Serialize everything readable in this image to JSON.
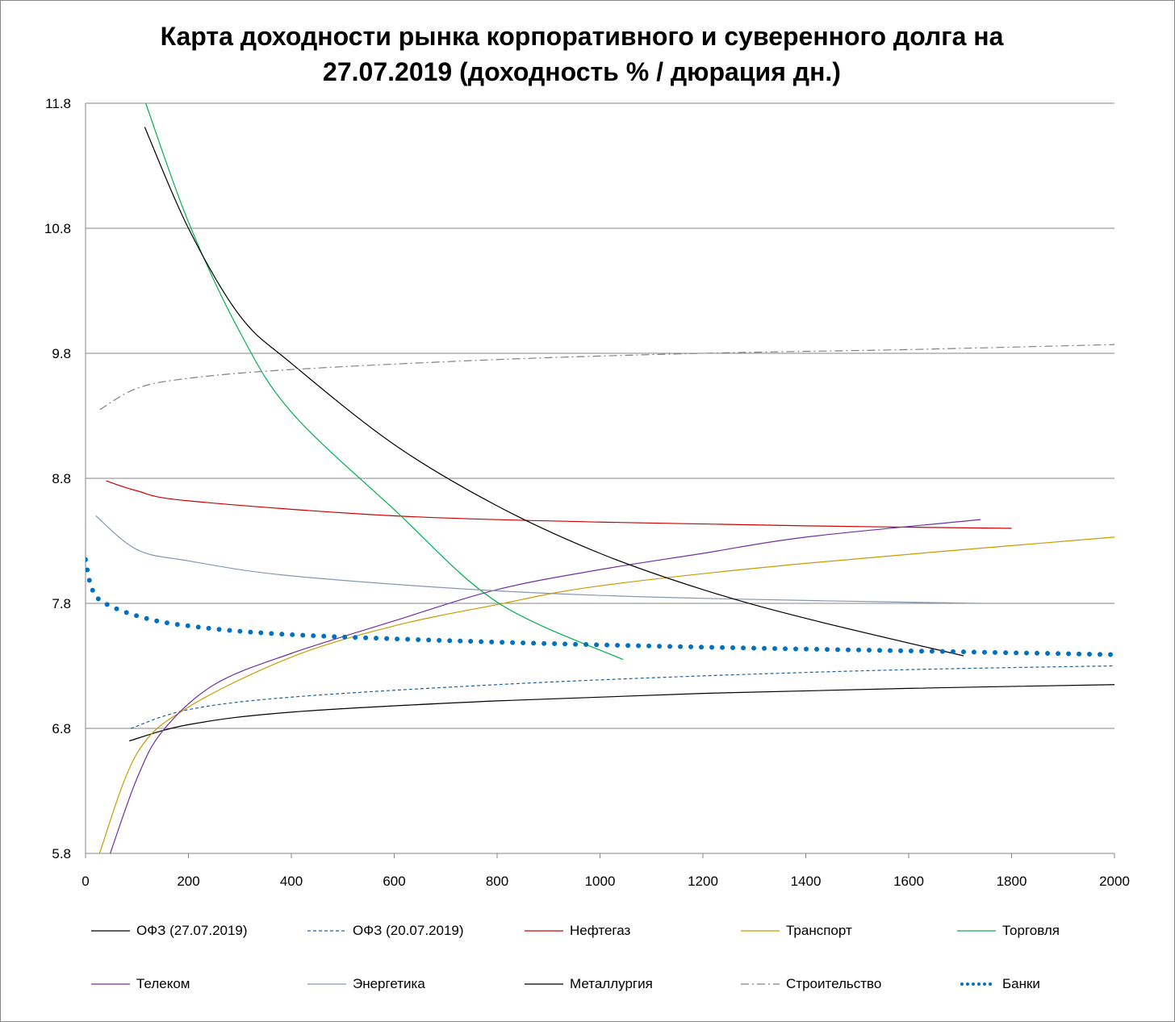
{
  "chart_data": {
    "type": "line",
    "title_line1": "Карта доходности рынка корпоративного и суверенного долга на",
    "title_line2": "27.07.2019 (доходность % / дюрация дн.)",
    "xlabel": "",
    "ylabel": "",
    "xlim": [
      0,
      2000
    ],
    "ylim": [
      5.8,
      11.8
    ],
    "xticks": [
      "0",
      "200",
      "400",
      "600",
      "800",
      "1000",
      "1200",
      "1400",
      "1600",
      "1800",
      "2000"
    ],
    "yticks": [
      "5.8",
      "6.8",
      "7.8",
      "8.8",
      "9.8",
      "10.8",
      "11.8"
    ],
    "grid": "horizontal",
    "legend_position": "bottom",
    "series": [
      {
        "name": "ОФЗ (27.07.2019)",
        "color": "#000000",
        "style": "solid",
        "points": [
          [
            85,
            6.7
          ],
          [
            200,
            6.83
          ],
          [
            400,
            6.93
          ],
          [
            800,
            7.02
          ],
          [
            1200,
            7.08
          ],
          [
            1600,
            7.12
          ],
          [
            2000,
            7.15
          ]
        ]
      },
      {
        "name": "ОФЗ (20.07.2019)",
        "color": "#1f5f9f",
        "style": "dashed",
        "points": [
          [
            88,
            6.8
          ],
          [
            200,
            6.95
          ],
          [
            400,
            7.05
          ],
          [
            800,
            7.15
          ],
          [
            1200,
            7.22
          ],
          [
            1600,
            7.27
          ],
          [
            2000,
            7.3
          ]
        ]
      },
      {
        "name": "Нефтегаз",
        "color": "#cc0000",
        "style": "solid",
        "points": [
          [
            40,
            8.78
          ],
          [
            100,
            8.7
          ],
          [
            200,
            8.62
          ],
          [
            600,
            8.5
          ],
          [
            1000,
            8.45
          ],
          [
            1400,
            8.42
          ],
          [
            1800,
            8.4
          ]
        ]
      },
      {
        "name": "Транспорт",
        "color": "#c89b00",
        "style": "solid",
        "points": [
          [
            27,
            5.8
          ],
          [
            100,
            6.6
          ],
          [
            200,
            6.97
          ],
          [
            400,
            7.37
          ],
          [
            600,
            7.62
          ],
          [
            800,
            7.79
          ],
          [
            1000,
            7.94
          ],
          [
            1400,
            8.12
          ],
          [
            2000,
            8.33
          ]
        ]
      },
      {
        "name": "Торговля",
        "color": "#00b050",
        "style": "solid",
        "points": [
          [
            117,
            11.8
          ],
          [
            200,
            10.85
          ],
          [
            300,
            9.97
          ],
          [
            400,
            9.33
          ],
          [
            600,
            8.55
          ],
          [
            800,
            7.81
          ],
          [
            1045,
            7.35
          ]
        ]
      },
      {
        "name": "Телеком",
        "color": "#7030a0",
        "style": "solid",
        "points": [
          [
            48,
            5.8
          ],
          [
            100,
            6.4
          ],
          [
            150,
            6.78
          ],
          [
            250,
            7.15
          ],
          [
            400,
            7.4
          ],
          [
            600,
            7.66
          ],
          [
            800,
            7.91
          ],
          [
            1000,
            8.07
          ],
          [
            1200,
            8.2
          ],
          [
            1400,
            8.33
          ],
          [
            1740,
            8.47
          ]
        ]
      },
      {
        "name": "Энергетика",
        "color": "#8497b0",
        "style": "solid",
        "points": [
          [
            20,
            8.5
          ],
          [
            100,
            8.23
          ],
          [
            200,
            8.14
          ],
          [
            400,
            8.02
          ],
          [
            800,
            7.9
          ],
          [
            1200,
            7.84
          ],
          [
            1740,
            7.8
          ]
        ]
      },
      {
        "name": "Металлургия",
        "color": "#000000",
        "style": "solid",
        "points": [
          [
            115,
            11.61
          ],
          [
            200,
            10.8
          ],
          [
            300,
            10.1
          ],
          [
            400,
            9.72
          ],
          [
            600,
            9.07
          ],
          [
            800,
            8.58
          ],
          [
            1000,
            8.2
          ],
          [
            1200,
            7.91
          ],
          [
            1400,
            7.68
          ],
          [
            1707,
            7.38
          ]
        ]
      },
      {
        "name": "Строительство",
        "color": "#808080",
        "style": "dashdot",
        "points": [
          [
            28,
            9.35
          ],
          [
            100,
            9.52
          ],
          [
            200,
            9.6
          ],
          [
            400,
            9.67
          ],
          [
            800,
            9.75
          ],
          [
            1200,
            9.8
          ],
          [
            1600,
            9.83
          ],
          [
            2000,
            9.87
          ]
        ]
      },
      {
        "name": "Банки",
        "color": "#0070c0",
        "style": "dotted",
        "points": [
          [
            0,
            8.15
          ],
          [
            10,
            7.95
          ],
          [
            30,
            7.82
          ],
          [
            100,
            7.7
          ],
          [
            200,
            7.62
          ],
          [
            400,
            7.55
          ],
          [
            800,
            7.49
          ],
          [
            1200,
            7.45
          ],
          [
            1600,
            7.42
          ],
          [
            2000,
            7.39
          ]
        ]
      }
    ]
  }
}
